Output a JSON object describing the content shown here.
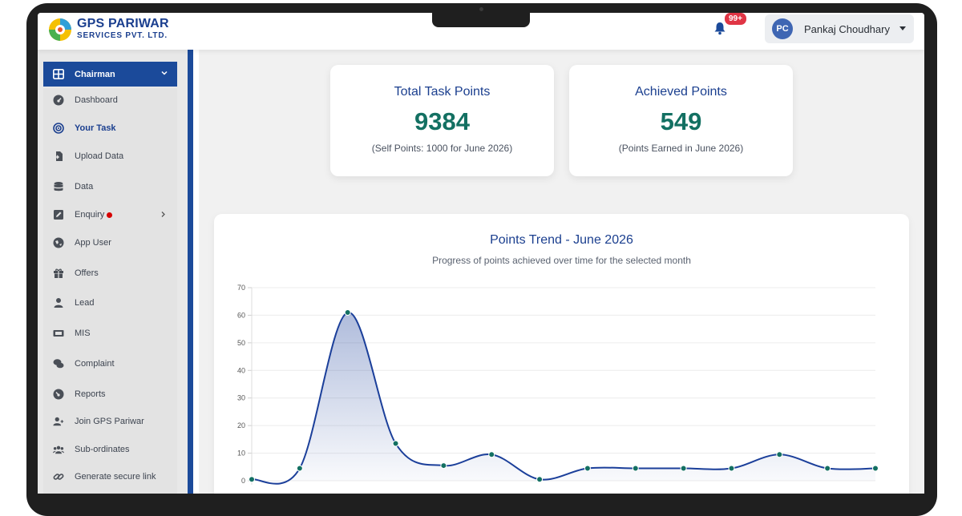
{
  "logo": {
    "line1": "GPS PARIWAR",
    "line2": "SERVICES PVT. LTD."
  },
  "header": {
    "notification_count": "99+",
    "user_initials": "PC",
    "user_name": "Pankaj Choudhary"
  },
  "sidebar": {
    "role": "Chairman",
    "items": [
      {
        "label": "Dashboard",
        "icon": "dashboard-icon"
      },
      {
        "label": "Your Task",
        "icon": "target-icon",
        "active": true
      },
      {
        "label": "Upload Data",
        "icon": "file-import-icon"
      },
      {
        "label": "Data",
        "icon": "database-icon"
      },
      {
        "label": "Enquiry",
        "icon": "edit-square-icon",
        "has_dot": true,
        "has_submenu": true
      },
      {
        "label": "App User",
        "icon": "globe-icon"
      },
      {
        "label": "Offers",
        "icon": "gift-icon"
      },
      {
        "label": "Lead",
        "icon": "user-icon"
      },
      {
        "label": "MIS",
        "icon": "mis-icon"
      },
      {
        "label": "Complaint",
        "icon": "comments-icon"
      },
      {
        "label": "Reports",
        "icon": "reports-icon"
      },
      {
        "label": "Join GPS Pariwar",
        "icon": "user-plus-icon"
      },
      {
        "label": "Sub-ordinates",
        "icon": "users-icon"
      },
      {
        "label": "Generate secure link",
        "icon": "link-icon"
      }
    ]
  },
  "cards": [
    {
      "title": "Total Task Points",
      "value": "9384",
      "subtitle": "(Self Points: 1000 for June 2026)"
    },
    {
      "title": "Achieved Points",
      "value": "549",
      "subtitle": "(Points Earned in June 2026)"
    }
  ],
  "chart_data": {
    "type": "area",
    "title": "Points Trend - June 2026",
    "subtitle": "Progress of points achieved over time for the selected month",
    "ylim": [
      0,
      70
    ],
    "yticks": [
      0,
      10,
      20,
      30,
      40,
      50,
      60,
      70
    ],
    "values": [
      0.5,
      4.5,
      61,
      13.5,
      5.5,
      9.5,
      0.5,
      4.5,
      4.5,
      4.5,
      4.5,
      9.5,
      4.5,
      4.5
    ],
    "grid": true,
    "colors": {
      "line": "#1b3f9a",
      "point": "#137062",
      "fill": "#1b3f9a"
    }
  }
}
